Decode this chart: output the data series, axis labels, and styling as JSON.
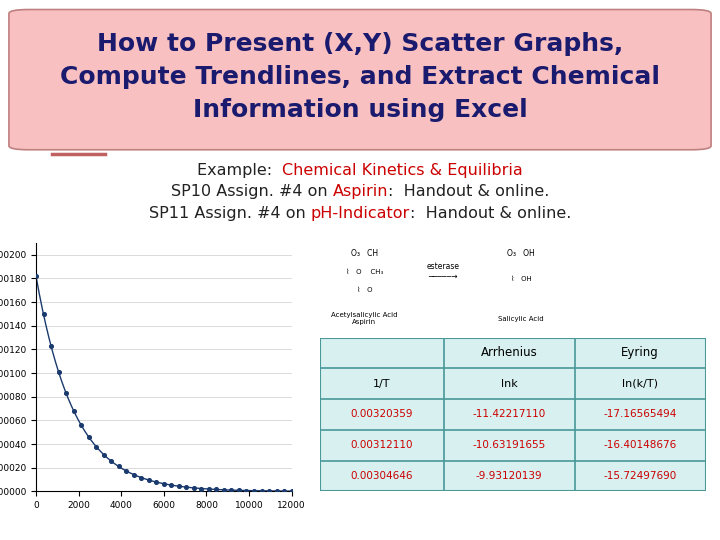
{
  "title_line1": "How to Present (X,Y) Scatter Graphs,",
  "title_line2": "Compute Trendlines, and Extract Chemical",
  "title_line3": "Information using Excel",
  "title_color": "#1a1a6e",
  "title_bg_top": "#f8c0c0",
  "title_bg_bottom": "#f09090",
  "title_fontsize": 18,
  "subtitle_fontsize": 11.5,
  "subtitle_parts": [
    {
      "text": "Example:  ",
      "color": "#222222"
    },
    {
      "text": "Chemical Kinetics & Equilibria",
      "color": "#cc0000"
    }
  ],
  "line2_parts": [
    {
      "text": "SP10 Assign. #4 on ",
      "color": "#222222"
    },
    {
      "text": "Aspirin",
      "color": "#cc0000"
    },
    {
      "text": ":  Handout & online.",
      "color": "#222222"
    }
  ],
  "line3_parts": [
    {
      "text": "SP11 Assign. #4 on ",
      "color": "#222222"
    },
    {
      "text": "pH-Indicator",
      "color": "#cc0000"
    },
    {
      "text": ":  Handout & online.",
      "color": "#222222"
    }
  ],
  "table_headers": [
    "",
    "Arrhenius",
    "Eyring"
  ],
  "table_subheaders": [
    "1/T",
    "lnk",
    "ln(k/T)"
  ],
  "table_data": [
    [
      "0.00320359",
      "-11.42217110",
      "-17.16565494"
    ],
    [
      "0.00312110",
      "-10.63191655",
      "-16.40148676"
    ],
    [
      "0.00304646",
      "-9.93120139",
      "-15.72497690"
    ]
  ],
  "table_data_color": "#cc0000",
  "table_border_color": "#4a9898",
  "table_bg_color": "#d8f0f0",
  "scatter_color": "#1a3a6e",
  "background_color": "#ffffff",
  "deco_line_color": "#c06060"
}
